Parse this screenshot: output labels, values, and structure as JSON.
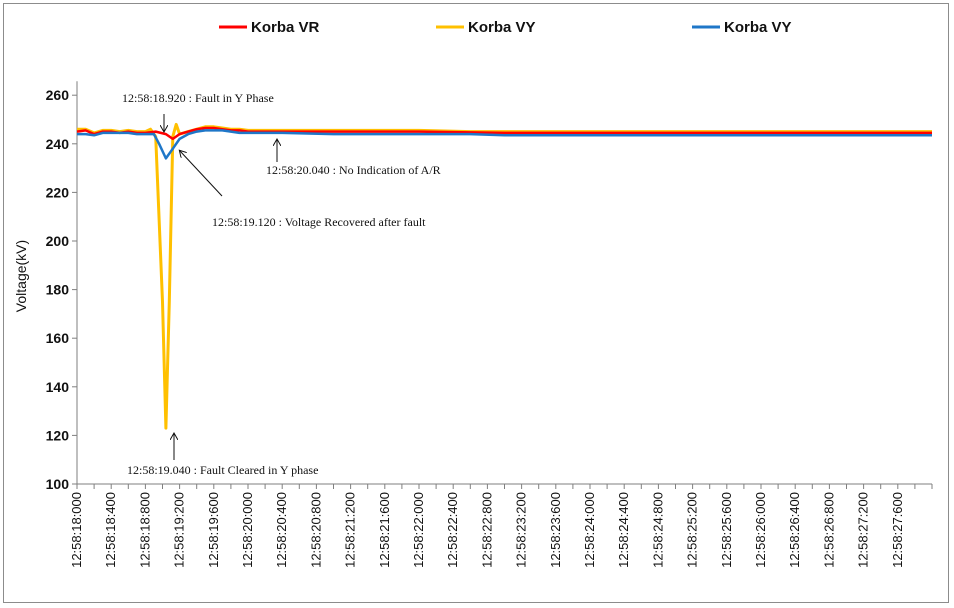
{
  "chart_data": {
    "type": "line",
    "title": "",
    "xlabel": "",
    "ylabel": "Voltage(kV)",
    "ylim": [
      100,
      260
    ],
    "yticks": [
      100,
      120,
      140,
      160,
      180,
      200,
      220,
      240,
      260
    ],
    "grid": false,
    "legend_position": "top",
    "x_tick_labels": [
      "12:58:18:000",
      "12:58:18:400",
      "12:58:18:800",
      "12:58:19:200",
      "12:58:19:600",
      "12:58:20:000",
      "12:58:20:400",
      "12:58:20:800",
      "12:58:21:200",
      "12:58:21:600",
      "12:58:22:000",
      "12:58:22:400",
      "12:58:22:800",
      "12:58:23:200",
      "12:58:23:600",
      "12:58:24:000",
      "12:58:24:400",
      "12:58:24:800",
      "12:58:25:200",
      "12:58:25:600",
      "12:58:26:000",
      "12:58:26:400",
      "12:58:26:800",
      "12:58:27:200",
      "12:58:27:600"
    ],
    "x_tick_seconds": [
      18.0,
      18.4,
      18.8,
      19.2,
      19.6,
      20.0,
      20.4,
      20.8,
      21.2,
      21.6,
      22.0,
      22.4,
      22.8,
      23.2,
      23.6,
      24.0,
      24.4,
      24.8,
      25.2,
      25.6,
      26.0,
      26.4,
      26.8,
      27.2,
      27.6
    ],
    "xlim_seconds": [
      18.0,
      28.0
    ],
    "series": [
      {
        "name": "Korba VR",
        "color": "#ff0000",
        "x": [
          18.0,
          18.1,
          18.2,
          18.3,
          18.4,
          18.5,
          18.6,
          18.7,
          18.8,
          18.92,
          19.04,
          19.12,
          19.2,
          19.3,
          19.4,
          19.5,
          19.6,
          19.7,
          19.8,
          19.9,
          20.0,
          20.4,
          21.0,
          22.0,
          23.0,
          24.0,
          25.0,
          26.0,
          27.0,
          28.0
        ],
        "y": [
          245,
          245.5,
          244,
          245,
          245,
          244.5,
          245,
          244.5,
          244.5,
          245,
          244,
          242,
          244,
          245,
          246,
          246.5,
          246.5,
          246,
          245.5,
          245.5,
          245,
          245,
          245,
          245,
          244.5,
          244.5,
          244.5,
          244.5,
          244.5,
          244.5
        ]
      },
      {
        "name": "Korba VY",
        "color": "#ffc000",
        "x": [
          18.0,
          18.1,
          18.2,
          18.3,
          18.4,
          18.5,
          18.6,
          18.7,
          18.8,
          18.86,
          18.92,
          19.0,
          19.04,
          19.08,
          19.12,
          19.16,
          19.2,
          19.3,
          19.4,
          19.5,
          19.6,
          19.7,
          19.8,
          19.9,
          20.0,
          20.4,
          21.0,
          22.0,
          22.6,
          23.0,
          24.0,
          25.0,
          26.0,
          27.0,
          28.0
        ],
        "y": [
          246,
          246,
          244.5,
          245.5,
          245.5,
          245,
          245.5,
          245,
          245,
          246,
          243,
          175,
          123,
          175,
          243,
          248,
          244,
          245,
          246,
          247,
          247,
          246.5,
          246,
          246,
          245.5,
          245.5,
          245.5,
          245.5,
          245,
          245,
          245,
          245,
          245,
          245,
          245
        ]
      },
      {
        "name": "Korba VY",
        "color": "#1f77c8",
        "x": [
          18.0,
          18.1,
          18.2,
          18.3,
          18.4,
          18.5,
          18.6,
          18.7,
          18.8,
          18.9,
          18.96,
          19.04,
          19.12,
          19.2,
          19.3,
          19.4,
          19.5,
          19.6,
          19.7,
          19.8,
          19.9,
          20.0,
          20.4,
          21.0,
          22.0,
          22.6,
          23.0,
          24.0,
          25.0,
          26.0,
          27.0,
          28.0
        ],
        "y": [
          244,
          244,
          243.5,
          244.5,
          244.5,
          244.5,
          244.5,
          244,
          244,
          244,
          240,
          234,
          238,
          242,
          244,
          245,
          245.5,
          245.5,
          245.5,
          245,
          244.5,
          244.5,
          244.5,
          244,
          244,
          244,
          243.5,
          243.5,
          243.5,
          243.5,
          243.5,
          243.5
        ]
      }
    ],
    "annotations": [
      {
        "text": "12:58:18.920  : Fault in Y Phase",
        "target_x": 18.92,
        "target_y": 245
      },
      {
        "text": "12:58:20.040  : No Indication of A/R",
        "target_x": 20.04,
        "target_y": 245
      },
      {
        "text": "12:58:19.120  : Voltage Recovered after fault",
        "target_x": 19.12,
        "target_y": 241
      },
      {
        "text": "12:58:19.040  : Fault Cleared in Y phase",
        "target_x": 19.04,
        "target_y": 123
      }
    ]
  }
}
